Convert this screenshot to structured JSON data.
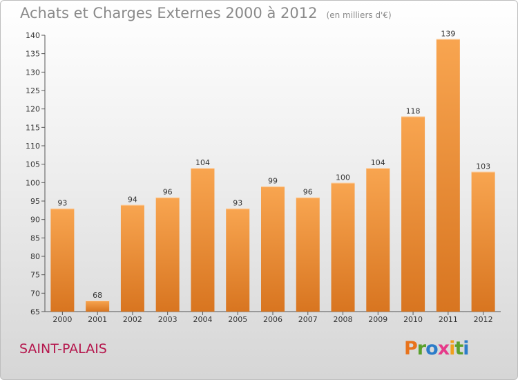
{
  "chart_data": {
    "type": "bar",
    "title": "Achats et Charges Externes 2000 à 2012",
    "unit": "(en milliers d'€)",
    "categories": [
      "2000",
      "2001",
      "2002",
      "2003",
      "2004",
      "2005",
      "2006",
      "2007",
      "2008",
      "2009",
      "2010",
      "2011",
      "2012"
    ],
    "values": [
      93,
      68,
      94,
      96,
      104,
      93,
      99,
      96,
      100,
      104,
      118,
      139,
      103
    ],
    "ylim": [
      65,
      140
    ],
    "yticks": [
      65,
      70,
      75,
      80,
      85,
      90,
      95,
      100,
      105,
      110,
      115,
      120,
      125,
      130,
      135,
      140
    ],
    "grid": false,
    "bar_color_top": "#f8a550",
    "bar_color_bottom": "#d87520"
  },
  "footer": {
    "city": "SAINT-PALAIS",
    "logo_letters": [
      "P",
      "r",
      "o",
      "x",
      "i",
      "t",
      "i"
    ],
    "logo_colors": [
      "#e8731c",
      "#5aa02c",
      "#2b7cc9",
      "#e63a8a",
      "#f0a01c",
      "#5aa02c",
      "#2b7cc9"
    ]
  }
}
